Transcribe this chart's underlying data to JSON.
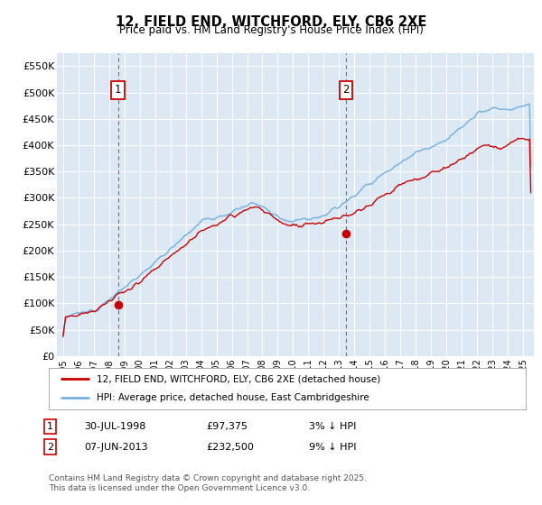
{
  "title_line1": "12, FIELD END, WITCHFORD, ELY, CB6 2XE",
  "title_line2": "Price paid vs. HM Land Registry's House Price Index (HPI)",
  "ylim": [
    0,
    575000
  ],
  "yticks": [
    0,
    50000,
    100000,
    150000,
    200000,
    250000,
    300000,
    350000,
    400000,
    450000,
    500000,
    550000
  ],
  "ytick_labels": [
    "£0",
    "£50K",
    "£100K",
    "£150K",
    "£200K",
    "£250K",
    "£300K",
    "£350K",
    "£400K",
    "£450K",
    "£500K",
    "£550K"
  ],
  "hpi_color": "#7ab3e0",
  "price_color": "#cc0000",
  "sale1_year": 1998.58,
  "sale1_value": 97375,
  "sale2_year": 2013.44,
  "sale2_value": 232500,
  "legend_line1": "12, FIELD END, WITCHFORD, ELY, CB6 2XE (detached house)",
  "legend_line2": "HPI: Average price, detached house, East Cambridgeshire",
  "footer": "Contains HM Land Registry data © Crown copyright and database right 2025.\nThis data is licensed under the Open Government Licence v3.0.",
  "background_color": "#dce9f5"
}
